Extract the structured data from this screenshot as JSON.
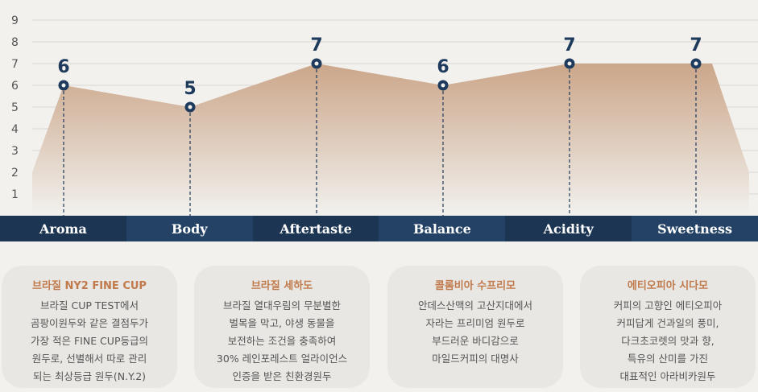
{
  "chart_data": {
    "type": "area",
    "categories": [
      "Aroma",
      "Body",
      "Aftertaste",
      "Balance",
      "Acidity",
      "Sweetness"
    ],
    "values": [
      6,
      5,
      7,
      6,
      7,
      7
    ],
    "data_labels": [
      "6",
      "5",
      "7",
      "6",
      "7",
      "7"
    ],
    "y_ticks": [
      "1",
      "2",
      "3",
      "4",
      "5",
      "6",
      "7",
      "8",
      "9"
    ],
    "ylim": [
      0,
      9
    ],
    "grid": true,
    "colors": {
      "area_top": "#c9a284",
      "area_bottom": "#f2f1ee",
      "marker": "#1e3a5c",
      "label": "#1e3a5c",
      "category_bar_dark": "#1c3553",
      "category_bar_light": "#234265"
    }
  },
  "cards": [
    {
      "title": "브라질 NY2 FINE CUP",
      "lines": [
        "브라질 CUP TEST에서",
        "곰팡이원두와 같은 결점두가",
        "가장 적은 FINE CUP등급의",
        "원두로, 선별해서 따로 관리",
        "되는 최상등급 원두(N.Y.2)"
      ]
    },
    {
      "title": "브라질 세하도",
      "lines": [
        "브라질 열대우림의 무분별한",
        "벌목을 막고, 야생 동물을",
        "보전하는 조건을 충족하여",
        "30% 레인포레스트 얼라이언스",
        "인증을 받은 친환경원두"
      ]
    },
    {
      "title": "콜롬비아 수프리모",
      "lines": [
        "안데스산맥의 고산지대에서",
        "자라는 프리미엄 원두로",
        "부드러운 바디감으로",
        "마일드커피의 대명사"
      ]
    },
    {
      "title": "에티오피아 시다모",
      "lines": [
        "커피의 고향인 에티오피아",
        "커피답게 건과일의 풍미,",
        "다크초코렛의 맛과 향,",
        "특유의 산미를 가진",
        "대표적인 아라비카원두"
      ]
    }
  ]
}
